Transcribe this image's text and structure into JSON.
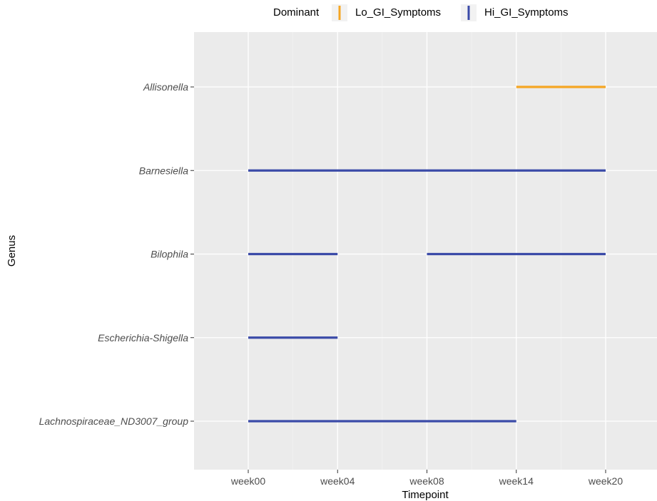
{
  "chart_data": {
    "type": "segment",
    "xlabel": "Timepoint",
    "ylabel": "Genus",
    "x_categories": [
      "week00",
      "week04",
      "week08",
      "week14",
      "week20"
    ],
    "y_categories": [
      "Allisonella",
      "Barnesiella",
      "Bilophila",
      "Escherichia-Shigella",
      "Lachnospiraceae_ND3007_group"
    ],
    "legend": {
      "title": "Dominant",
      "position": "top",
      "entries": [
        {
          "name": "Lo_GI_Symptoms",
          "color": "#F5A623"
        },
        {
          "name": "Hi_GI_Symptoms",
          "color": "#3B4BA8"
        }
      ]
    },
    "segments": [
      {
        "genus": "Allisonella",
        "start": "week14",
        "end": "week20",
        "group": "Lo_GI_Symptoms"
      },
      {
        "genus": "Barnesiella",
        "start": "week00",
        "end": "week20",
        "group": "Hi_GI_Symptoms"
      },
      {
        "genus": "Bilophila",
        "start": "week00",
        "end": "week04",
        "group": "Hi_GI_Symptoms"
      },
      {
        "genus": "Bilophila",
        "start": "week08",
        "end": "week20",
        "group": "Hi_GI_Symptoms"
      },
      {
        "genus": "Escherichia-Shigella",
        "start": "week00",
        "end": "week04",
        "group": "Hi_GI_Symptoms"
      },
      {
        "genus": "Lachnospiraceae_ND3007_group",
        "start": "week00",
        "end": "week14",
        "group": "Hi_GI_Symptoms"
      }
    ],
    "grid": true,
    "panel_background": "#EBEBEB"
  }
}
